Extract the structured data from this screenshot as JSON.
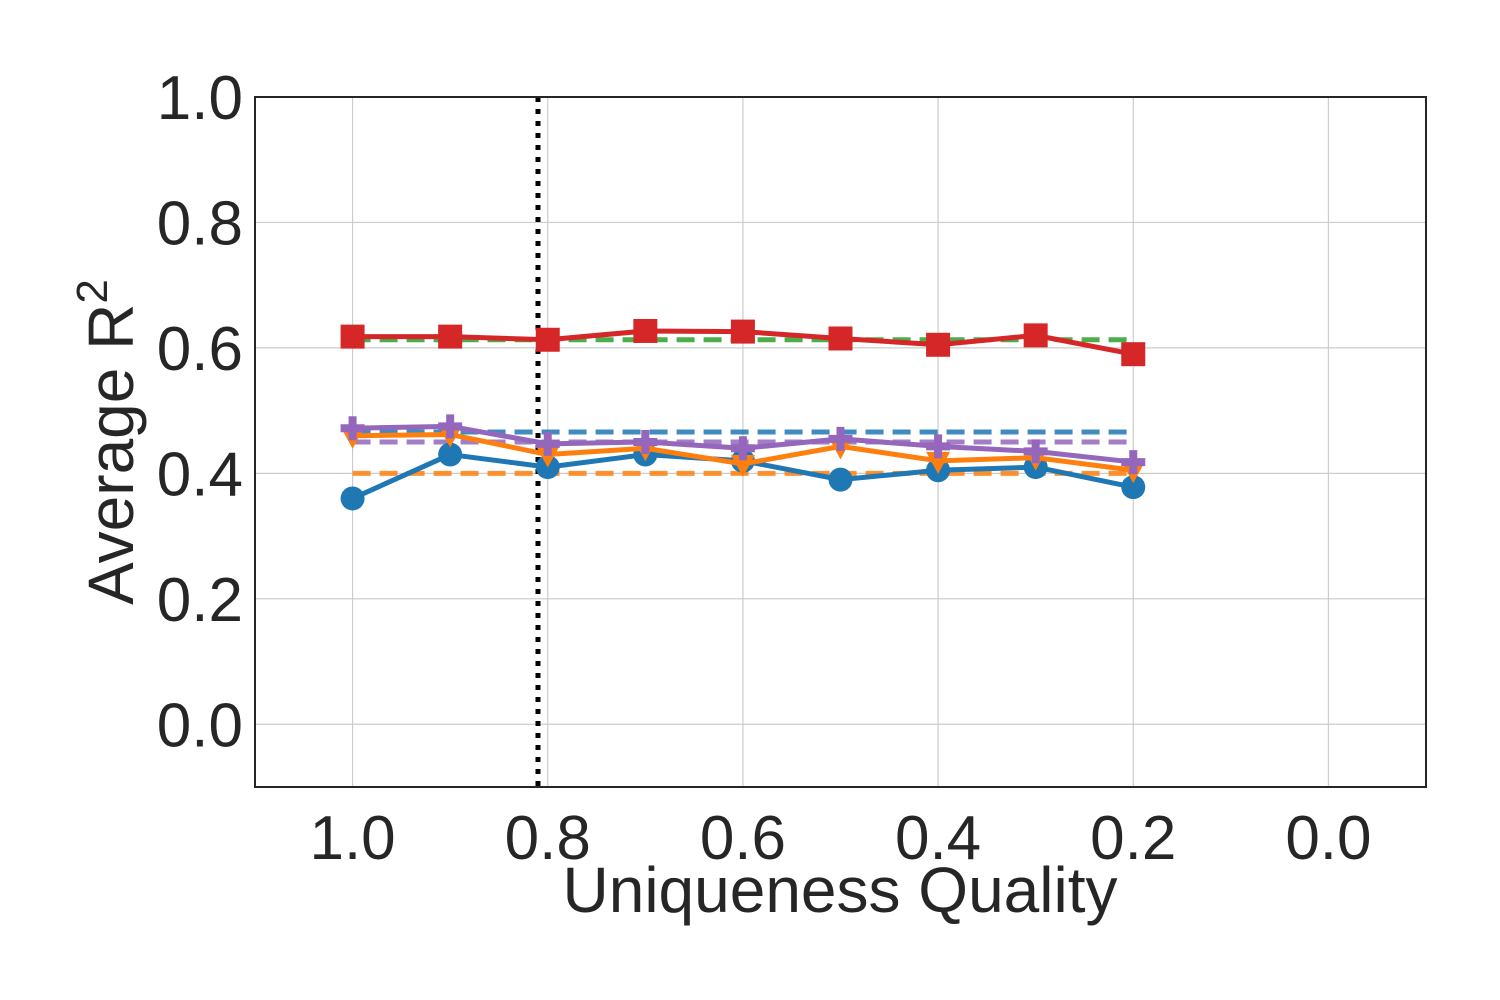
{
  "chart_data": {
    "type": "line",
    "xlabel": "Uniqueness Quality",
    "ylabel": "Average R",
    "ylabel_superscript": "2",
    "x_ticks": [
      "1.0",
      "0.8",
      "0.6",
      "0.4",
      "0.2",
      "0.0"
    ],
    "y_ticks": [
      "0.0",
      "0.2",
      "0.4",
      "0.6",
      "0.8",
      "1.0"
    ],
    "xlim": [
      1.1,
      -0.1
    ],
    "ylim": [
      -0.1,
      1.0
    ],
    "x_reversed": true,
    "grid": true,
    "vertical_reference_line": {
      "x": 0.81,
      "style": "dotted",
      "color": "#000000"
    },
    "x": [
      1.0,
      0.9,
      0.8,
      0.7,
      0.6,
      0.5,
      0.4,
      0.3,
      0.2
    ],
    "series": [
      {
        "color": "#1f77b4",
        "marker": "circle",
        "values": [
          0.36,
          0.43,
          0.41,
          0.43,
          0.42,
          0.39,
          0.405,
          0.41,
          0.378
        ]
      },
      {
        "color": "#ff7f0e",
        "marker": "triangle-down",
        "values": [
          0.46,
          0.462,
          0.43,
          0.44,
          0.415,
          0.443,
          0.42,
          0.425,
          0.405
        ]
      },
      {
        "color": "#9467bd",
        "marker": "plus",
        "values": [
          0.472,
          0.475,
          0.447,
          0.45,
          0.44,
          0.455,
          0.443,
          0.435,
          0.418
        ]
      },
      {
        "color": "#d62728",
        "marker": "square",
        "values": [
          0.618,
          0.618,
          0.613,
          0.627,
          0.626,
          0.615,
          0.605,
          0.62,
          0.59
        ]
      }
    ],
    "baselines": [
      {
        "color": "#1f77b4",
        "style": "dashed",
        "value": 0.466,
        "x_range": [
          1.0,
          0.2
        ]
      },
      {
        "color": "#ff7f0e",
        "style": "dashed",
        "value": 0.4,
        "x_range": [
          1.0,
          0.2
        ]
      },
      {
        "color": "#9467bd",
        "style": "dashed",
        "value": 0.45,
        "x_range": [
          1.0,
          0.2
        ]
      },
      {
        "color": "#2ca02c",
        "style": "dashed",
        "value": 0.613,
        "x_range": [
          1.0,
          0.2
        ]
      }
    ]
  }
}
